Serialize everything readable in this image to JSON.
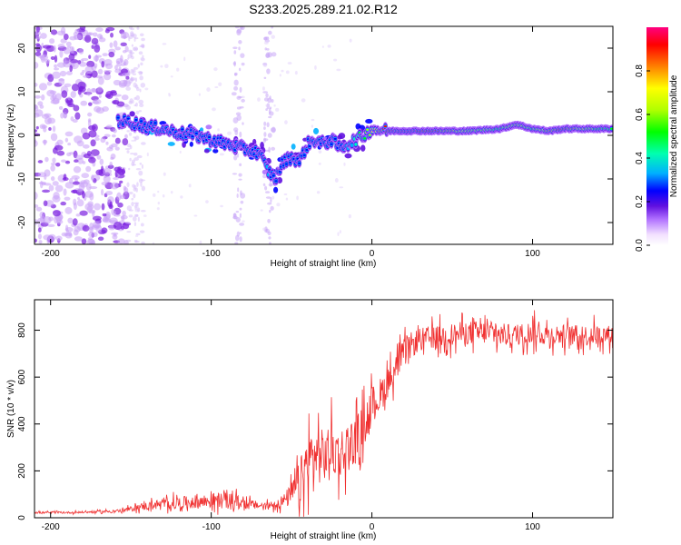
{
  "title": "S233.2025.289.21.02.R12",
  "colors": {
    "snr_line": "#f03030",
    "spectrum_core": "#e00000",
    "scatter": "#9a40ff"
  },
  "chart_data": [
    {
      "type": "heatmap",
      "name": "spectrogram",
      "xlabel": "Height of straight line (km)",
      "ylabel": "Frequency (Hz)",
      "xlim": [
        -210,
        150
      ],
      "ylim": [
        -25,
        25
      ],
      "xticks": [
        -200,
        -100,
        0,
        100
      ],
      "xtick_labels": [
        "-200",
        "-100",
        "0",
        "100"
      ],
      "yticks": [
        -20,
        -10,
        0,
        10,
        20
      ],
      "ytick_labels": [
        "-20",
        "-10",
        "0",
        "10",
        "20"
      ],
      "grid": false,
      "ridge": {
        "x": [
          -160,
          -150,
          -140,
          -130,
          -120,
          -110,
          -100,
          -90,
          -80,
          -70,
          -65,
          -60,
          -55,
          -50,
          -45,
          -40,
          -35,
          -30,
          -25,
          -20,
          -15,
          -10,
          -5,
          0,
          10,
          20,
          40,
          60,
          80,
          90,
          100,
          110,
          120,
          140,
          150
        ],
        "freq": [
          3.5,
          3,
          2,
          1.5,
          0.5,
          0,
          -1,
          -2,
          -3,
          -4,
          -8,
          -10,
          -6,
          -5,
          -6,
          -2,
          -1,
          -2,
          -1,
          -3,
          -2,
          -1,
          0,
          1.5,
          1,
          1,
          1,
          1,
          1.5,
          2.5,
          1.5,
          1,
          1.5,
          1.5,
          1.5
        ],
        "amplitude": [
          0.35,
          0.3,
          0.3,
          0.3,
          0.3,
          0.3,
          0.3,
          0.3,
          0.3,
          0.3,
          0.4,
          0.3,
          0.3,
          0.3,
          0.3,
          0.3,
          0.3,
          0.3,
          0.3,
          0.3,
          0.4,
          0.5,
          0.6,
          0.7,
          0.95,
          1.0,
          0.9,
          0.7,
          0.6,
          0.8,
          0.6,
          0.85,
          0.9,
          0.6,
          0.55
        ]
      },
      "colorbar": {
        "label": "Normalized spectral amplitude",
        "range": [
          0,
          1
        ],
        "ticks": [
          0.0,
          0.2,
          0.4,
          0.6,
          0.8
        ],
        "tick_labels": [
          "0.0",
          "0.2",
          "0.4",
          "0.6",
          "0.8"
        ],
        "colormap": [
          "#ffffff",
          "#f2e0ff",
          "#b070ff",
          "#6010e0",
          "#0000ff",
          "#00b0ff",
          "#00ffb0",
          "#00ff00",
          "#b0ff00",
          "#ffff00",
          "#ff8000",
          "#ff0000",
          "#ff0080"
        ]
      }
    },
    {
      "type": "line",
      "name": "snr",
      "xlabel": "Height of straight line (km)",
      "ylabel": "SNR (10 * v/v)",
      "xlim": [
        -210,
        150
      ],
      "ylim": [
        0,
        930
      ],
      "xticks": [
        -200,
        -100,
        0,
        100
      ],
      "xtick_labels": [
        "-200",
        "-100",
        "0",
        "100"
      ],
      "yticks": [
        0,
        200,
        400,
        600,
        800
      ],
      "ytick_labels": [
        "0",
        "200",
        "400",
        "600",
        "800"
      ],
      "grid": false,
      "series": [
        {
          "name": "SNR",
          "x": [
            -210,
            -190,
            -170,
            -155,
            -145,
            -135,
            -125,
            -115,
            -105,
            -95,
            -85,
            -75,
            -65,
            -55,
            -50,
            -45,
            -40,
            -35,
            -30,
            -25,
            -20,
            -15,
            -10,
            -5,
            0,
            5,
            10,
            15,
            20,
            25,
            30,
            40,
            50,
            60,
            70,
            80,
            90,
            100,
            110,
            120,
            130,
            140,
            150
          ],
          "mean": [
            22,
            22,
            25,
            30,
            45,
            55,
            60,
            65,
            70,
            75,
            70,
            55,
            50,
            70,
            100,
            150,
            230,
            270,
            260,
            300,
            270,
            310,
            330,
            400,
            480,
            520,
            580,
            640,
            700,
            740,
            760,
            770,
            780,
            790,
            790,
            780,
            780,
            790,
            780,
            780,
            775,
            780,
            780
          ],
          "spread": [
            8,
            8,
            10,
            15,
            30,
            40,
            50,
            55,
            60,
            70,
            60,
            40,
            30,
            60,
            100,
            180,
            280,
            250,
            230,
            220,
            220,
            200,
            200,
            180,
            160,
            150,
            130,
            120,
            120,
            110,
            100,
            100,
            100,
            100,
            100,
            100,
            90,
            100,
            90,
            90,
            90,
            90,
            80
          ]
        }
      ]
    }
  ]
}
